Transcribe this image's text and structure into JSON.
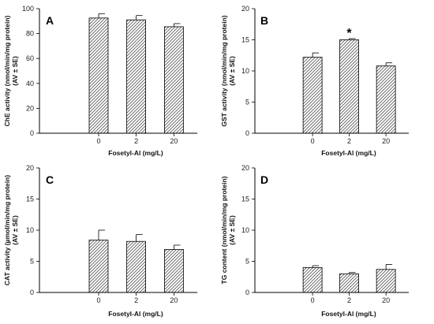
{
  "chart_data": [
    {
      "type": "bar",
      "panel": "A",
      "categories": [
        "0",
        "2",
        "20"
      ],
      "values": [
        92.5,
        91,
        85.5
      ],
      "errors": [
        3.5,
        3.5,
        2.5
      ],
      "xlabel": "Fosetyl-Al  (mg/L)",
      "ylabel": [
        "ChE activity (nmol/min/mg protein)",
        "(AV ± SE)"
      ],
      "ylim": [
        0,
        100
      ],
      "yticks": [
        0,
        20,
        40,
        60,
        80,
        100
      ],
      "significance": [],
      "grid": false
    },
    {
      "type": "bar",
      "panel": "B",
      "categories": [
        "0",
        "2",
        "20"
      ],
      "values": [
        12.2,
        15,
        10.8
      ],
      "errors": [
        0.7,
        0.2,
        0.5
      ],
      "xlabel": "Fosetyl-Al  (mg/L)",
      "ylabel": [
        "GST activity (nmol/min/mg protein)",
        "(AV ± SE)"
      ],
      "ylim": [
        0,
        20
      ],
      "yticks": [
        0,
        5,
        10,
        15,
        20
      ],
      "significance": [
        {
          "category": "2",
          "mark": "*"
        }
      ],
      "grid": false
    },
    {
      "type": "bar",
      "panel": "C",
      "categories": [
        "0",
        "2",
        "20"
      ],
      "values": [
        8.4,
        8.2,
        6.9
      ],
      "errors": [
        1.6,
        1.1,
        0.7
      ],
      "xlabel": "Fosetyl-Al  (mg/L)",
      "ylabel": [
        "CAT activity (µmol/min/mg protein)",
        "(AV ± SE)"
      ],
      "ylim": [
        0,
        20
      ],
      "yticks": [
        0,
        5,
        10,
        15,
        20
      ],
      "significance": [],
      "grid": false
    },
    {
      "type": "bar",
      "panel": "D",
      "categories": [
        "0",
        "2",
        "20"
      ],
      "values": [
        4.0,
        3.0,
        3.7
      ],
      "errors": [
        0.3,
        0.2,
        0.8
      ],
      "xlabel": "Fosetyl-Al  (mg/L)",
      "ylabel": [
        "TG content (nmol/min/mg protein)",
        "(AV ± SE)"
      ],
      "ylim": [
        0,
        20
      ],
      "yticks": [
        0,
        5,
        10,
        15,
        20
      ],
      "significance": [],
      "grid": false
    }
  ],
  "style": {
    "bar_fill": "#ffffff",
    "bar_hatch": "#555555",
    "axis_color": "#000000"
  }
}
